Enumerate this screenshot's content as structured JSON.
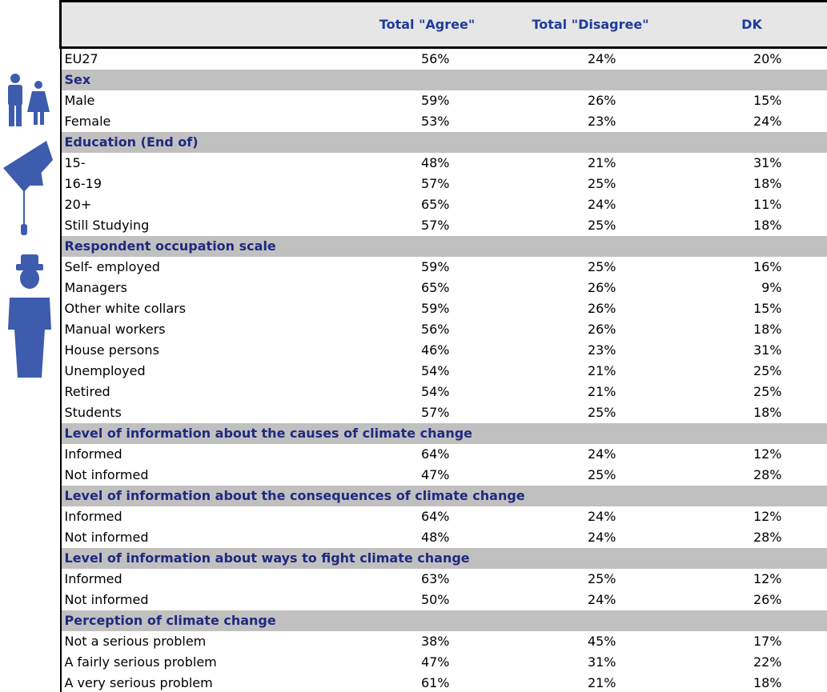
{
  "table": {
    "columns": [
      "Total \"Agree\"",
      "Total \"Disagree\"",
      "DK"
    ],
    "rows": [
      {
        "label": "EU27",
        "values": [
          "56%",
          "24%",
          "20%"
        ]
      },
      {
        "section": "Sex"
      },
      {
        "label": "Male",
        "values": [
          "59%",
          "26%",
          "15%"
        ]
      },
      {
        "label": "Female",
        "values": [
          "53%",
          "23%",
          "24%"
        ]
      },
      {
        "section": "Education (End of)"
      },
      {
        "label": "15-",
        "values": [
          "48%",
          "21%",
          "31%"
        ]
      },
      {
        "label": "16-19",
        "values": [
          "57%",
          "25%",
          "18%"
        ]
      },
      {
        "label": "20+",
        "values": [
          "65%",
          "24%",
          "11%"
        ]
      },
      {
        "label": "Still Studying",
        "values": [
          "57%",
          "25%",
          "18%"
        ]
      },
      {
        "section": "Respondent occupation scale"
      },
      {
        "label": "Self- employed",
        "values": [
          "59%",
          "25%",
          "16%"
        ]
      },
      {
        "label": "Managers",
        "values": [
          "65%",
          "26%",
          "9%"
        ]
      },
      {
        "label": "Other white collars",
        "values": [
          "59%",
          "26%",
          "15%"
        ]
      },
      {
        "label": "Manual workers",
        "values": [
          "56%",
          "26%",
          "18%"
        ]
      },
      {
        "label": "House persons",
        "values": [
          "46%",
          "23%",
          "31%"
        ]
      },
      {
        "label": "Unemployed",
        "values": [
          "54%",
          "21%",
          "25%"
        ]
      },
      {
        "label": "Retired",
        "values": [
          "54%",
          "21%",
          "25%"
        ]
      },
      {
        "label": "Students",
        "values": [
          "57%",
          "25%",
          "18%"
        ]
      },
      {
        "section": "Level of information about the causes of climate change"
      },
      {
        "label": "Informed",
        "values": [
          "64%",
          "24%",
          "12%"
        ]
      },
      {
        "label": "Not informed",
        "values": [
          "47%",
          "25%",
          "28%"
        ]
      },
      {
        "section": "Level of information about the consequences of climate change"
      },
      {
        "label": "Informed",
        "values": [
          "64%",
          "24%",
          "12%"
        ]
      },
      {
        "label": "Not informed",
        "values": [
          "48%",
          "24%",
          "28%"
        ]
      },
      {
        "section": "Level of information about ways to fight climate change"
      },
      {
        "label": "Informed",
        "values": [
          "63%",
          "25%",
          "12%"
        ]
      },
      {
        "label": "Not informed",
        "values": [
          "50%",
          "24%",
          "26%"
        ]
      },
      {
        "section": "Perception of climate change"
      },
      {
        "label": "Not a serious problem",
        "values": [
          "38%",
          "45%",
          "17%"
        ]
      },
      {
        "label": "A fairly serious problem",
        "values": [
          "47%",
          "31%",
          "22%"
        ]
      },
      {
        "label": "A very serious problem",
        "values": [
          "61%",
          "21%",
          "18%"
        ]
      }
    ]
  }
}
